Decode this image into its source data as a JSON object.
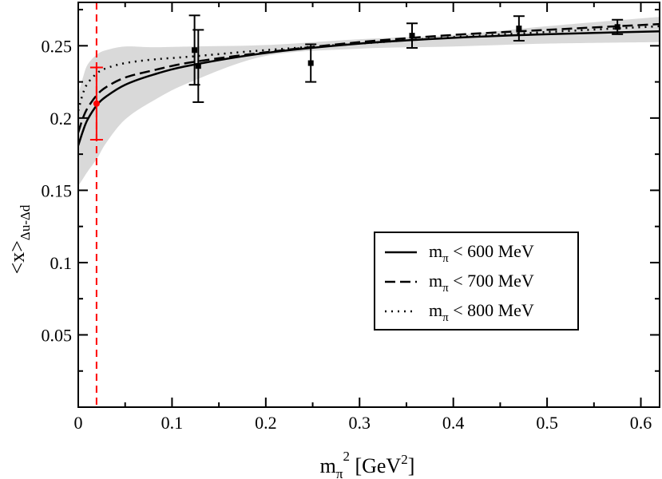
{
  "chart_data": {
    "type": "line",
    "title": "",
    "xlabel": "m_π^2 [GeV^2]",
    "xlabel_parts": {
      "main": "m",
      "sub": "π",
      "sup": "2",
      "rest": " [GeV",
      "rest_sup": "2",
      "end": "]"
    },
    "ylabel": "<x>_{Δu-Δd}",
    "ylabel_parts": {
      "main": "<x>",
      "sub": "Δu-Δd"
    },
    "xlim": [
      0,
      0.62
    ],
    "ylim": [
      0,
      0.28
    ],
    "x_ticks": [
      0,
      0.1,
      0.2,
      0.3,
      0.4,
      0.5,
      0.6
    ],
    "x_tick_labels": [
      "0",
      "0.1",
      "0.2",
      "0.3",
      "0.4",
      "0.5",
      "0.6"
    ],
    "y_ticks": [
      0.05,
      0.1,
      0.15,
      0.2,
      0.25
    ],
    "y_tick_labels": [
      "0.05",
      "0.1",
      "0.15",
      "0.2",
      "0.25"
    ],
    "grid": false,
    "legend_position": "center-right",
    "physical_point": {
      "x": 0.0195,
      "y": 0.21,
      "yerr": 0.025,
      "color": "#ff0000"
    },
    "lattice_points": [
      {
        "x": 0.124,
        "y": 0.247,
        "yerr": 0.024
      },
      {
        "x": 0.128,
        "y": 0.236,
        "yerr": 0.025
      },
      {
        "x": 0.248,
        "y": 0.238,
        "yerr": 0.013
      },
      {
        "x": 0.356,
        "y": 0.257,
        "yerr": 0.0085
      },
      {
        "x": 0.47,
        "y": 0.262,
        "yerr": 0.0085
      },
      {
        "x": 0.575,
        "y": 0.263,
        "yerr": 0.005
      }
    ],
    "error_band": {
      "x": [
        0,
        0.005,
        0.01,
        0.02,
        0.03,
        0.05,
        0.08,
        0.12,
        0.2,
        0.3,
        0.4,
        0.5,
        0.62
      ],
      "upper": [
        0.216,
        0.228,
        0.237,
        0.244,
        0.247,
        0.2495,
        0.249,
        0.2495,
        0.2505,
        0.2545,
        0.2575,
        0.2635,
        0.27
      ],
      "lower": [
        0.153,
        0.158,
        0.163,
        0.172,
        0.183,
        0.199,
        0.212,
        0.225,
        0.243,
        0.248,
        0.2495,
        0.2515,
        0.2525
      ]
    },
    "series": [
      {
        "name": "m_π < 600 MeV",
        "legend_main": "m",
        "legend_sub": "π",
        "legend_rest": " < 600 MeV",
        "style": "solid",
        "x": [
          0,
          0.005,
          0.01,
          0.02,
          0.03,
          0.05,
          0.08,
          0.12,
          0.2,
          0.3,
          0.4,
          0.5,
          0.62
        ],
        "y": [
          0.181,
          0.191,
          0.199,
          0.209,
          0.215,
          0.223,
          0.23,
          0.2365,
          0.245,
          0.2515,
          0.2555,
          0.258,
          0.26
        ]
      },
      {
        "name": "m_π < 700 MeV",
        "legend_main": "m",
        "legend_sub": "π",
        "legend_rest": " < 700 MeV",
        "style": "dashed",
        "x": [
          0,
          0.005,
          0.01,
          0.02,
          0.03,
          0.05,
          0.08,
          0.12,
          0.2,
          0.3,
          0.4,
          0.5,
          0.62
        ],
        "y": [
          0.19,
          0.2,
          0.207,
          0.216,
          0.2215,
          0.228,
          0.233,
          0.2385,
          0.2455,
          0.2525,
          0.2575,
          0.261,
          0.265
        ]
      },
      {
        "name": "m_π < 800 MeV",
        "legend_main": "m",
        "legend_sub": "π",
        "legend_rest": " < 800 MeV",
        "style": "dotted",
        "x": [
          0,
          0.005,
          0.01,
          0.02,
          0.03,
          0.05,
          0.08,
          0.12,
          0.2,
          0.3,
          0.4,
          0.5,
          0.62
        ],
        "y": [
          0.205,
          0.217,
          0.224,
          0.231,
          0.2345,
          0.238,
          0.2405,
          0.2425,
          0.247,
          0.2515,
          0.256,
          0.2595,
          0.2635
        ]
      }
    ]
  }
}
